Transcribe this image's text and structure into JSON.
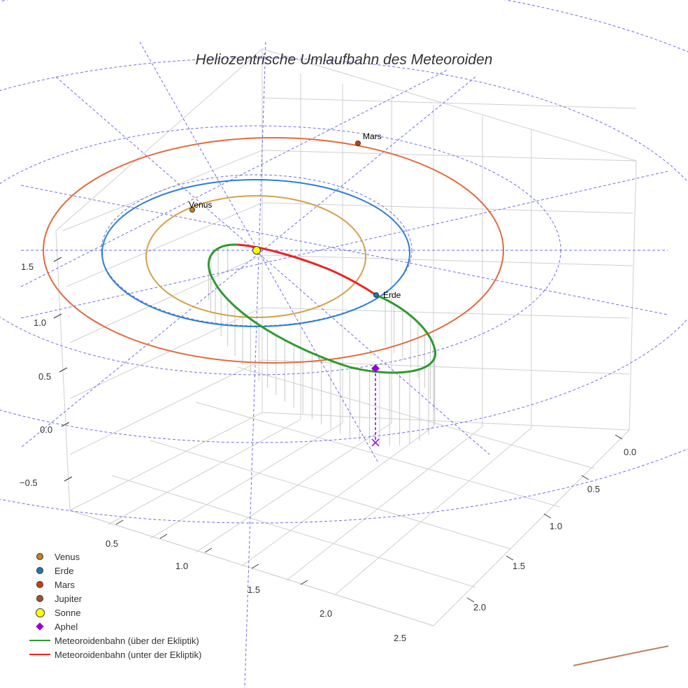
{
  "chart_data": {
    "type": "scatter3d",
    "title": "Heliozentrische Umlaufbahn des Meteoroiden",
    "axes": {
      "x_ticks": [
        "0.5",
        "1.0",
        "1.5",
        "2.0",
        "2.5"
      ],
      "y_ticks": [
        "0.0",
        "0.5",
        "1.0",
        "1.5",
        "2.0"
      ],
      "z_ticks": [
        "−0.5",
        "0.0",
        "0.5",
        "1.0",
        "1.5"
      ]
    },
    "planets": [
      {
        "name": "Venus",
        "color": "#c8811a",
        "orbit_color": "#d4a04a",
        "orbit_radius_au": 0.72
      },
      {
        "name": "Erde",
        "color": "#1f77b4",
        "orbit_color": "#2a7fd4",
        "orbit_radius_au": 1.0
      },
      {
        "name": "Mars",
        "color": "#c8400f",
        "orbit_color": "#e06a3c",
        "orbit_radius_au": 1.52
      },
      {
        "name": "Jupiter",
        "color": "#a0522d",
        "orbit_color": "#c08060",
        "orbit_radius_au": 5.2
      }
    ],
    "point_labels": {
      "venus": "Venus",
      "erde": "Erde",
      "mars": "Mars"
    },
    "sun": {
      "name": "Sonne",
      "color": "#ffff00"
    },
    "aphel": {
      "name": "Aphel",
      "color": "#9400d3"
    },
    "meteoroid_above": {
      "name": "Meteoroidenbahn (über der Ekliptik)",
      "color": "#2e9a2e"
    },
    "meteoroid_below": {
      "name": "Meteoroidenbahn (unter der Ekliptik)",
      "color": "#ee2222"
    },
    "legend": [
      "Venus",
      "Erde",
      "Mars",
      "Jupiter",
      "Sonne",
      "Aphel",
      "Meteoroidenbahn (über der Ekliptik)",
      "Meteoroidenbahn (unter der Ekliptik)"
    ],
    "legend_position": "bottom-left"
  }
}
